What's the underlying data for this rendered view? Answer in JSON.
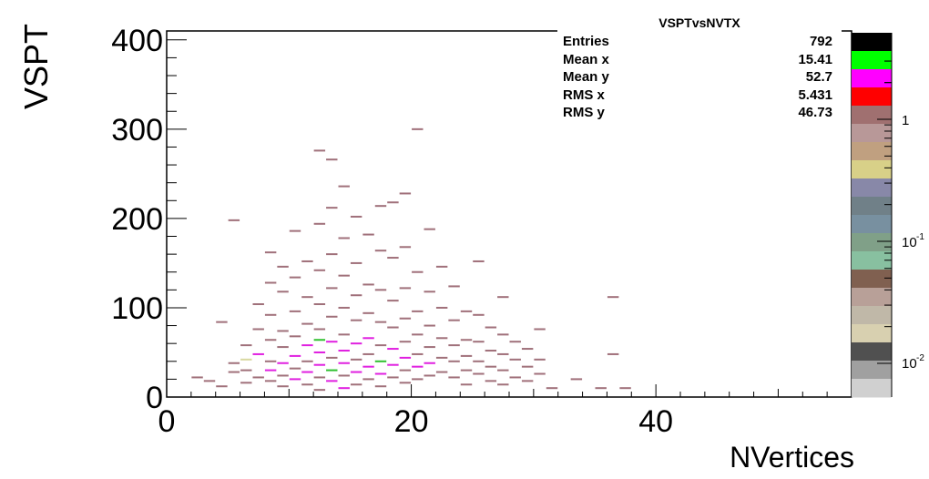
{
  "chart_data": {
    "type": "heatmap",
    "title": "VSPTvsNVTX",
    "xlabel": "NVertices",
    "ylabel": "VSPT",
    "xlim": [
      0,
      56
    ],
    "ylim": [
      0,
      410
    ],
    "x_ticks": [
      "0",
      "20",
      "40"
    ],
    "y_ticks": [
      "0",
      "100",
      "200",
      "300",
      "400"
    ],
    "palette_labels": [
      "1",
      "10^-1",
      "10^-2"
    ],
    "z_scale": "log",
    "grid": false,
    "stats": [
      {
        "key": "Entries",
        "value": "792"
      },
      {
        "key": "Mean x",
        "value": "15.41"
      },
      {
        "key": "Mean y",
        "value": "52.7"
      },
      {
        "key": "RMS x",
        "value": "5.431"
      },
      {
        "key": "RMS y",
        "value": "46.73"
      }
    ],
    "cells": [
      [
        2,
        22,
        "#a0707a"
      ],
      [
        3,
        18,
        "#a0707a"
      ],
      [
        4,
        84,
        "#a0707a"
      ],
      [
        4,
        12,
        "#a0707a"
      ],
      [
        5,
        198,
        "#a0707a"
      ],
      [
        5,
        38,
        "#a0707a"
      ],
      [
        5,
        28,
        "#a0707a"
      ],
      [
        6,
        58,
        "#a0707a"
      ],
      [
        6,
        42,
        "#d8d8a0"
      ],
      [
        6,
        30,
        "#a0707a"
      ],
      [
        6,
        16,
        "#a0707a"
      ],
      [
        7,
        104,
        "#a0707a"
      ],
      [
        7,
        76,
        "#a0707a"
      ],
      [
        7,
        48,
        "#e020e0"
      ],
      [
        7,
        22,
        "#a0707a"
      ],
      [
        8,
        162,
        "#a0707a"
      ],
      [
        8,
        128,
        "#a0707a"
      ],
      [
        8,
        92,
        "#a0707a"
      ],
      [
        8,
        64,
        "#a0707a"
      ],
      [
        8,
        40,
        "#a0707a"
      ],
      [
        8,
        30,
        "#e020e0"
      ],
      [
        8,
        18,
        "#a0707a"
      ],
      [
        9,
        146,
        "#a0707a"
      ],
      [
        9,
        118,
        "#a0707a"
      ],
      [
        9,
        74,
        "#a0707a"
      ],
      [
        9,
        56,
        "#a0707a"
      ],
      [
        9,
        38,
        "#e020e0"
      ],
      [
        9,
        24,
        "#a0707a"
      ],
      [
        9,
        12,
        "#a0707a"
      ],
      [
        10,
        186,
        "#a0707a"
      ],
      [
        10,
        134,
        "#a0707a"
      ],
      [
        10,
        96,
        "#a0707a"
      ],
      [
        10,
        68,
        "#a0707a"
      ],
      [
        10,
        46,
        "#e020e0"
      ],
      [
        10,
        32,
        "#a0707a"
      ],
      [
        10,
        20,
        "#e020e0"
      ],
      [
        11,
        152,
        "#a0707a"
      ],
      [
        11,
        112,
        "#a0707a"
      ],
      [
        11,
        82,
        "#a0707a"
      ],
      [
        11,
        58,
        "#e020e0"
      ],
      [
        11,
        40,
        "#a0707a"
      ],
      [
        11,
        28,
        "#e020e0"
      ],
      [
        11,
        14,
        "#a0707a"
      ],
      [
        12,
        276,
        "#a0707a"
      ],
      [
        12,
        194,
        "#a0707a"
      ],
      [
        12,
        142,
        "#a0707a"
      ],
      [
        12,
        104,
        "#a0707a"
      ],
      [
        12,
        76,
        "#a0707a"
      ],
      [
        12,
        64,
        "#30c030"
      ],
      [
        12,
        50,
        "#e020e0"
      ],
      [
        12,
        36,
        "#e020e0"
      ],
      [
        12,
        22,
        "#a0707a"
      ],
      [
        12,
        8,
        "#a0707a"
      ],
      [
        13,
        266,
        "#a0707a"
      ],
      [
        13,
        212,
        "#a0707a"
      ],
      [
        13,
        160,
        "#a0707a"
      ],
      [
        13,
        122,
        "#a0707a"
      ],
      [
        13,
        90,
        "#a0707a"
      ],
      [
        13,
        62,
        "#e020e0"
      ],
      [
        13,
        44,
        "#a0707a"
      ],
      [
        13,
        30,
        "#30c030"
      ],
      [
        13,
        18,
        "#e020e0"
      ],
      [
        14,
        236,
        "#a0707a"
      ],
      [
        14,
        178,
        "#a0707a"
      ],
      [
        14,
        136,
        "#a0707a"
      ],
      [
        14,
        100,
        "#a0707a"
      ],
      [
        14,
        70,
        "#a0707a"
      ],
      [
        14,
        52,
        "#e020e0"
      ],
      [
        14,
        38,
        "#e020e0"
      ],
      [
        14,
        24,
        "#a0707a"
      ],
      [
        14,
        10,
        "#e020e0"
      ],
      [
        15,
        202,
        "#a0707a"
      ],
      [
        15,
        150,
        "#a0707a"
      ],
      [
        15,
        114,
        "#a0707a"
      ],
      [
        15,
        86,
        "#a0707a"
      ],
      [
        15,
        60,
        "#e020e0"
      ],
      [
        15,
        42,
        "#a0707a"
      ],
      [
        15,
        28,
        "#e020e0"
      ],
      [
        15,
        14,
        "#a0707a"
      ],
      [
        16,
        182,
        "#a0707a"
      ],
      [
        16,
        126,
        "#a0707a"
      ],
      [
        16,
        94,
        "#a0707a"
      ],
      [
        16,
        66,
        "#e020e0"
      ],
      [
        16,
        48,
        "#a0707a"
      ],
      [
        16,
        34,
        "#e020e0"
      ],
      [
        16,
        20,
        "#a0707a"
      ],
      [
        17,
        214,
        "#a0707a"
      ],
      [
        17,
        164,
        "#a0707a"
      ],
      [
        17,
        120,
        "#a0707a"
      ],
      [
        17,
        84,
        "#a0707a"
      ],
      [
        17,
        58,
        "#a0707a"
      ],
      [
        17,
        40,
        "#30c030"
      ],
      [
        17,
        26,
        "#e020e0"
      ],
      [
        17,
        12,
        "#a0707a"
      ],
      [
        18,
        218,
        "#a0707a"
      ],
      [
        18,
        156,
        "#a0707a"
      ],
      [
        18,
        108,
        "#a0707a"
      ],
      [
        18,
        78,
        "#a0707a"
      ],
      [
        18,
        54,
        "#e020e0"
      ],
      [
        18,
        36,
        "#e020e0"
      ],
      [
        18,
        22,
        "#a0707a"
      ],
      [
        19,
        228,
        "#a0707a"
      ],
      [
        19,
        168,
        "#a0707a"
      ],
      [
        19,
        122,
        "#a0707a"
      ],
      [
        19,
        88,
        "#a0707a"
      ],
      [
        19,
        62,
        "#a0707a"
      ],
      [
        19,
        44,
        "#e020e0"
      ],
      [
        19,
        30,
        "#a0707a"
      ],
      [
        19,
        16,
        "#a0707a"
      ],
      [
        20,
        300,
        "#a0707a"
      ],
      [
        20,
        140,
        "#a0707a"
      ],
      [
        20,
        96,
        "#a0707a"
      ],
      [
        20,
        70,
        "#a0707a"
      ],
      [
        20,
        48,
        "#a0707a"
      ],
      [
        20,
        34,
        "#e020e0"
      ],
      [
        20,
        20,
        "#a0707a"
      ],
      [
        21,
        188,
        "#a0707a"
      ],
      [
        21,
        118,
        "#a0707a"
      ],
      [
        21,
        80,
        "#a0707a"
      ],
      [
        21,
        56,
        "#a0707a"
      ],
      [
        21,
        38,
        "#e020e0"
      ],
      [
        21,
        24,
        "#a0707a"
      ],
      [
        22,
        146,
        "#a0707a"
      ],
      [
        22,
        100,
        "#a0707a"
      ],
      [
        22,
        66,
        "#a0707a"
      ],
      [
        22,
        44,
        "#a0707a"
      ],
      [
        22,
        28,
        "#a0707a"
      ],
      [
        23,
        124,
        "#a0707a"
      ],
      [
        23,
        86,
        "#a0707a"
      ],
      [
        23,
        58,
        "#a0707a"
      ],
      [
        23,
        40,
        "#a0707a"
      ],
      [
        23,
        22,
        "#a0707a"
      ],
      [
        24,
        96,
        "#a0707a"
      ],
      [
        24,
        64,
        "#a0707a"
      ],
      [
        24,
        46,
        "#a0707a"
      ],
      [
        24,
        30,
        "#a0707a"
      ],
      [
        24,
        14,
        "#a0707a"
      ],
      [
        25,
        152,
        "#a0707a"
      ],
      [
        25,
        92,
        "#a0707a"
      ],
      [
        25,
        62,
        "#a0707a"
      ],
      [
        25,
        40,
        "#a0707a"
      ],
      [
        25,
        26,
        "#a0707a"
      ],
      [
        26,
        78,
        "#a0707a"
      ],
      [
        26,
        52,
        "#a0707a"
      ],
      [
        26,
        34,
        "#a0707a"
      ],
      [
        26,
        18,
        "#a0707a"
      ],
      [
        27,
        112,
        "#a0707a"
      ],
      [
        27,
        70,
        "#a0707a"
      ],
      [
        27,
        48,
        "#a0707a"
      ],
      [
        27,
        30,
        "#a0707a"
      ],
      [
        27,
        14,
        "#a0707a"
      ],
      [
        28,
        62,
        "#a0707a"
      ],
      [
        28,
        42,
        "#a0707a"
      ],
      [
        28,
        22,
        "#a0707a"
      ],
      [
        29,
        54,
        "#a0707a"
      ],
      [
        29,
        34,
        "#a0707a"
      ],
      [
        29,
        18,
        "#a0707a"
      ],
      [
        30,
        76,
        "#a0707a"
      ],
      [
        30,
        42,
        "#a0707a"
      ],
      [
        30,
        26,
        "#a0707a"
      ],
      [
        31,
        10,
        "#a0707a"
      ],
      [
        33,
        20,
        "#a0707a"
      ],
      [
        35,
        10,
        "#a0707a"
      ],
      [
        36,
        48,
        "#a0707a"
      ],
      [
        36,
        112,
        "#a0707a"
      ],
      [
        37,
        10,
        "#a0707a"
      ]
    ]
  }
}
